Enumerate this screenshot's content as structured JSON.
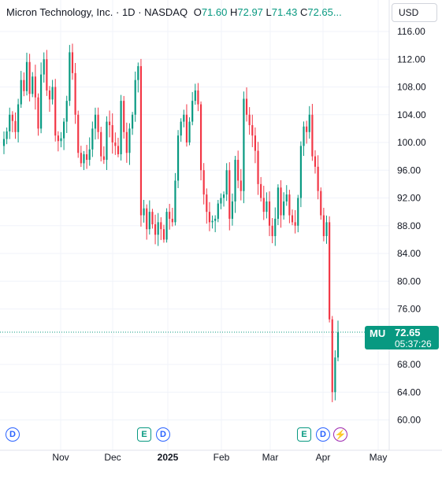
{
  "header": {
    "symbol_name": "Micron Technology, Inc.",
    "interval": "1D",
    "exchange": "NASDAQ",
    "open_label": "O",
    "open": "71.60",
    "high_label": "H",
    "high": "72.97",
    "low_label": "L",
    "low": "71.43",
    "close_label": "C",
    "close": "72.65",
    "more": "..."
  },
  "currency": "USD",
  "last_price": {
    "ticker": "MU",
    "price": "72.65",
    "countdown": "05:37:26"
  },
  "events": [
    "D",
    "E",
    "D",
    "E",
    "D",
    "S"
  ],
  "colors": {
    "up": "#089981",
    "down": "#f23645",
    "grid": "#f0f3fa",
    "axis_text": "#131722",
    "dividend": "#2962ff",
    "earnings": "#089981",
    "split": "#9c27b0"
  },
  "chart_data": {
    "type": "candlestick",
    "title": "Micron Technology, Inc. · 1D · NASDAQ",
    "y_ticks": [
      "116.00",
      "112.00",
      "108.00",
      "104.00",
      "100.00",
      "96.00",
      "92.00",
      "88.00",
      "84.00",
      "80.00",
      "76.00",
      "72.00",
      "68.00",
      "64.00",
      "60.00"
    ],
    "ylim": [
      58,
      118
    ],
    "x_ticks": [
      "Nov",
      "Dec",
      "2025",
      "Feb",
      "Mar",
      "Apr",
      "May"
    ],
    "grid": true,
    "closes": [
      100.5,
      101.6,
      104.0,
      103.1,
      101.5,
      105.5,
      109.0,
      107.4,
      111.6,
      107.0,
      109.5,
      106.5,
      102.0,
      109.8,
      112.0,
      107.5,
      106.2,
      108.0,
      101.0,
      100.2,
      100.6,
      103.0,
      106.0,
      113.0,
      110.0,
      104.0,
      98.5,
      97.0,
      98.3,
      97.5,
      99.0,
      102.0,
      104.0,
      101.5,
      98.0,
      97.5,
      103.0,
      102.5,
      100.0,
      99.5,
      98.3,
      106.0,
      101.5,
      98.5,
      102.0,
      104.0,
      109.0,
      111.0,
      89.5,
      90.5,
      87.5,
      90.0,
      88.2,
      86.7,
      88.5,
      87.5,
      86.0,
      90.0,
      89.0,
      88.5,
      94.5,
      101.0,
      103.0,
      104.0,
      100.0,
      103.0,
      106.0,
      107.5,
      105.5,
      96.0,
      92.5,
      90.0,
      88.5,
      88.7,
      89.0,
      91.2,
      92.0,
      92.5,
      96.0,
      89.0,
      91.5,
      97.5,
      94.5,
      93.0,
      106.3,
      104.0,
      102.5,
      101.0,
      98.8,
      94.0,
      92.0,
      90.0,
      91.5,
      88.0,
      86.5,
      89.0,
      93.5,
      89.5,
      91.5,
      92.5,
      89.5,
      88.5,
      88.0,
      92.0,
      99.5,
      102.3,
      101.5,
      104.0,
      98.0,
      96.5,
      93.0,
      89.5,
      86.5,
      88.5,
      74.5,
      64.0,
      69.0,
      72.65
    ],
    "opens_note": "each candle opens at the prior close"
  }
}
